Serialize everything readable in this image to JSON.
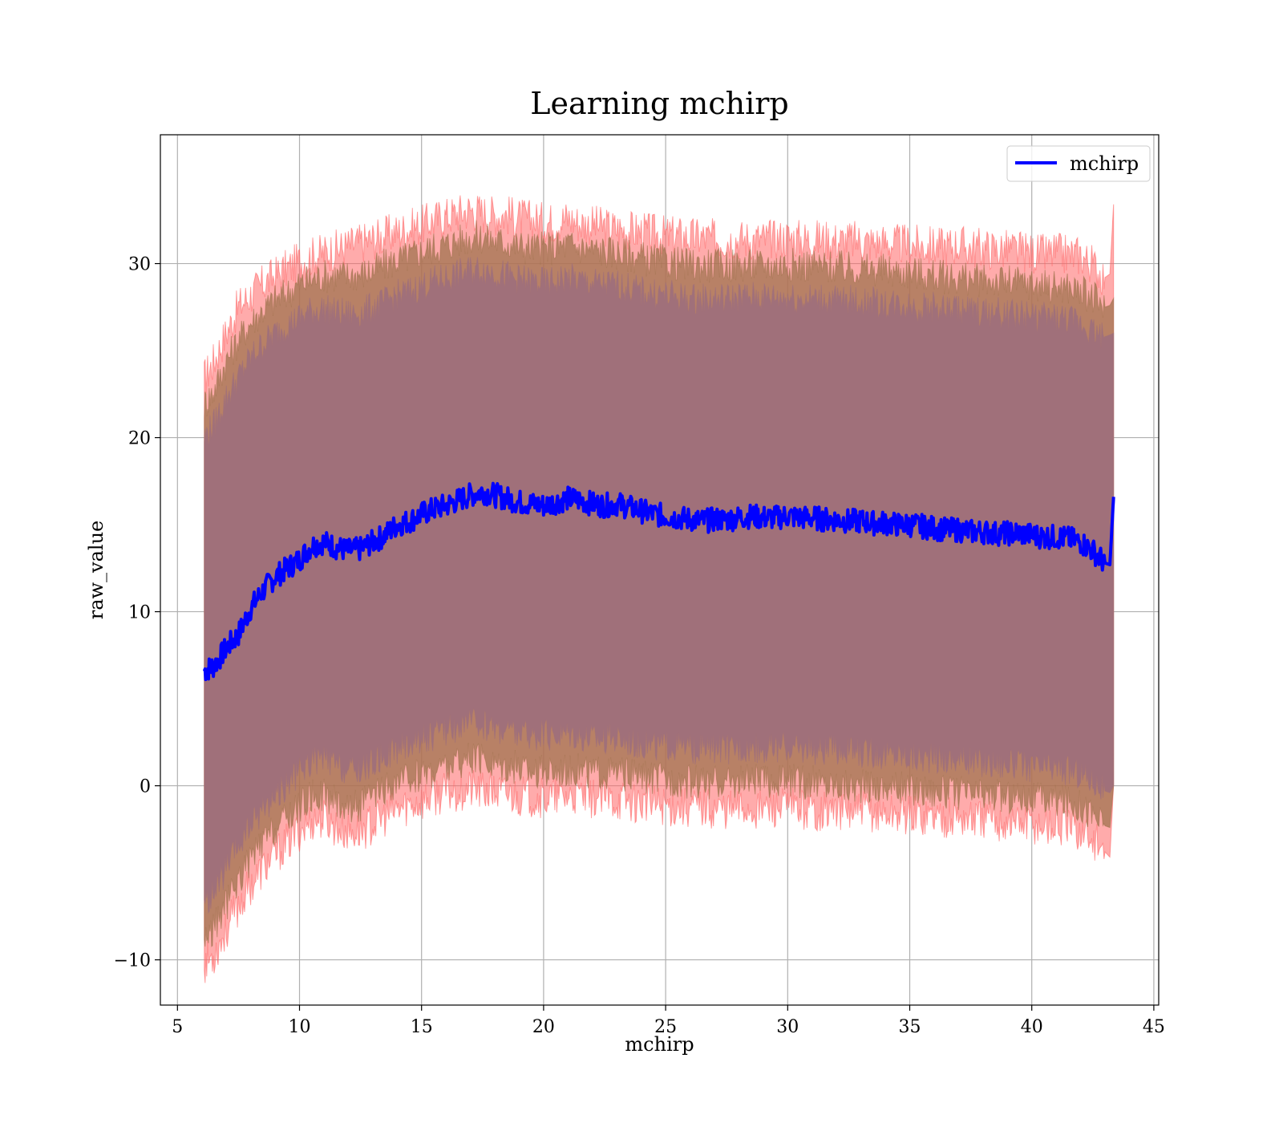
{
  "chart_data": {
    "type": "line",
    "title": "Learning mchirp",
    "xlabel": "mchirp",
    "ylabel": "raw_value",
    "xlim": [
      4.3,
      45.2
    ],
    "ylim": [
      -12.6,
      37.4
    ],
    "xticks": [
      5,
      10,
      15,
      20,
      25,
      30,
      35,
      40,
      45
    ],
    "yticks": [
      -10,
      0,
      10,
      20,
      30
    ],
    "xtick_labels": [
      "5",
      "10",
      "15",
      "20",
      "25",
      "30",
      "35",
      "40",
      "45"
    ],
    "ytick_labels": [
      "−10",
      "0",
      "10",
      "20",
      "30"
    ],
    "grid": true,
    "legend": {
      "position": "top-right"
    },
    "colors": {
      "line": "#0000ff",
      "outer_band": "#ff6666",
      "middle_band": "#a0734f",
      "inner_band": "#a0707a"
    },
    "series": [
      {
        "name": "mchirp",
        "x": [
          6.1,
          6.5,
          7.0,
          7.5,
          8.0,
          8.5,
          9.0,
          9.5,
          10.0,
          10.5,
          11.0,
          11.5,
          12.0,
          12.5,
          13.0,
          13.5,
          14.0,
          14.5,
          15.0,
          15.5,
          16.0,
          16.5,
          17.0,
          17.5,
          18.0,
          18.5,
          19.0,
          19.5,
          20.0,
          20.5,
          21.0,
          21.5,
          22.0,
          22.5,
          23.0,
          23.5,
          24.0,
          24.5,
          25.0,
          25.5,
          26.0,
          26.5,
          27.0,
          27.5,
          28.0,
          28.5,
          29.0,
          29.5,
          30.0,
          30.5,
          31.0,
          31.5,
          32.0,
          32.5,
          33.0,
          33.5,
          34.0,
          34.5,
          35.0,
          35.5,
          36.0,
          36.5,
          37.0,
          37.5,
          38.0,
          38.5,
          39.0,
          39.5,
          40.0,
          40.5,
          41.0,
          41.5,
          42.0,
          42.5,
          43.0,
          43.2,
          43.35
        ],
        "values": [
          6.6,
          6.9,
          7.9,
          8.7,
          10.2,
          11.2,
          12.0,
          12.5,
          13.0,
          13.8,
          14.0,
          13.7,
          13.5,
          13.6,
          14.0,
          14.4,
          15.0,
          15.2,
          15.6,
          15.9,
          16.1,
          16.4,
          16.7,
          16.9,
          16.7,
          16.5,
          16.3,
          16.2,
          16.1,
          16.3,
          16.5,
          16.4,
          16.2,
          16.1,
          16.2,
          16.0,
          15.8,
          15.6,
          15.5,
          15.4,
          15.3,
          15.2,
          15.3,
          15.3,
          15.4,
          15.5,
          15.4,
          15.4,
          15.5,
          15.4,
          15.4,
          15.3,
          15.3,
          15.2,
          15.2,
          15.1,
          15.1,
          15.0,
          15.0,
          14.9,
          14.8,
          14.7,
          14.7,
          14.6,
          14.6,
          14.5,
          14.5,
          14.5,
          14.4,
          14.3,
          14.3,
          14.2,
          14.0,
          13.5,
          12.8,
          12.7,
          16.6
        ]
      }
    ],
    "bands": [
      {
        "role": "outer",
        "upper": [
          23.4,
          24.4,
          26.0,
          27.5,
          28.2,
          28.8,
          29.3,
          29.7,
          30.1,
          30.4,
          30.6,
          30.8,
          31.0,
          31.2,
          31.4,
          31.6,
          31.8,
          32.0,
          32.2,
          32.5,
          32.7,
          32.9,
          33.1,
          32.9,
          32.8,
          32.8,
          32.6,
          32.5,
          32.4,
          32.4,
          32.6,
          32.3,
          32.2,
          32.1,
          32.0,
          31.9,
          31.8,
          31.7,
          31.6,
          31.6,
          31.5,
          31.5,
          31.4,
          31.4,
          31.4,
          31.4,
          31.4,
          31.4,
          31.5,
          31.4,
          31.4,
          31.4,
          31.3,
          31.3,
          31.3,
          31.2,
          31.2,
          31.1,
          31.1,
          31.0,
          31.0,
          31.0,
          31.1,
          30.9,
          30.9,
          30.8,
          30.8,
          30.7,
          30.6,
          30.5,
          30.6,
          30.5,
          30.5,
          29.9,
          29.2,
          29.4,
          33.4
        ],
        "lower": [
          -10.2,
          -9.7,
          -8.3,
          -6.9,
          -5.7,
          -4.8,
          -4.0,
          -3.3,
          -2.6,
          -2.0,
          -1.9,
          -2.4,
          -2.7,
          -2.6,
          -2.2,
          -1.8,
          -1.4,
          -1.1,
          -0.9,
          -0.6,
          -0.4,
          -0.3,
          -0.2,
          -0.3,
          -0.4,
          -0.5,
          -0.6,
          -0.6,
          -0.7,
          -0.7,
          -0.6,
          -0.6,
          -0.7,
          -0.8,
          -0.8,
          -0.9,
          -1.0,
          -1.1,
          -1.1,
          -1.2,
          -1.2,
          -1.2,
          -1.3,
          -1.3,
          -1.3,
          -1.3,
          -1.3,
          -1.3,
          -1.3,
          -1.3,
          -1.4,
          -1.4,
          -1.4,
          -1.5,
          -1.5,
          -1.5,
          -1.6,
          -1.6,
          -1.6,
          -1.7,
          -1.7,
          -1.8,
          -1.8,
          -1.9,
          -1.9,
          -2.0,
          -2.1,
          -2.1,
          -2.2,
          -2.3,
          -2.3,
          -2.4,
          -2.6,
          -3.1,
          -3.8,
          -4.1,
          0.0
        ]
      },
      {
        "role": "middle",
        "upper": [
          21.9,
          22.7,
          24.4,
          25.6,
          26.6,
          27.3,
          27.9,
          28.3,
          28.8,
          29.1,
          29.3,
          29.3,
          29.3,
          29.4,
          29.6,
          29.9,
          30.2,
          30.4,
          30.7,
          30.9,
          31.1,
          31.3,
          31.5,
          31.5,
          31.3,
          31.2,
          31.0,
          30.9,
          30.9,
          30.9,
          31.1,
          30.9,
          30.8,
          30.7,
          30.6,
          30.5,
          30.3,
          30.2,
          30.1,
          30.0,
          29.9,
          29.9,
          29.9,
          29.9,
          29.9,
          29.9,
          29.9,
          29.9,
          30.0,
          29.9,
          29.9,
          29.8,
          29.8,
          29.7,
          29.7,
          29.6,
          29.6,
          29.5,
          29.5,
          29.4,
          29.3,
          29.2,
          29.2,
          29.1,
          29.0,
          29.0,
          28.9,
          28.9,
          28.8,
          28.7,
          28.7,
          28.6,
          28.4,
          28.0,
          27.5,
          27.6,
          28.0
        ],
        "lower": [
          -8.8,
          -8.2,
          -6.8,
          -5.4,
          -4.2,
          -3.3,
          -2.5,
          -1.8,
          -1.2,
          -0.6,
          -0.5,
          -0.9,
          -1.2,
          -1.1,
          -0.7,
          -0.3,
          0.1,
          0.4,
          0.7,
          0.9,
          1.1,
          1.3,
          1.5,
          1.4,
          1.3,
          1.2,
          1.0,
          0.9,
          0.8,
          0.9,
          1.0,
          0.9,
          0.8,
          0.7,
          0.7,
          0.6,
          0.5,
          0.4,
          0.3,
          0.3,
          0.2,
          0.2,
          0.2,
          0.2,
          0.2,
          0.3,
          0.2,
          0.2,
          0.3,
          0.2,
          0.2,
          0.1,
          0.1,
          0.0,
          0.0,
          0.0,
          -0.1,
          -0.1,
          -0.2,
          -0.2,
          -0.3,
          -0.4,
          -0.4,
          -0.5,
          -0.5,
          -0.6,
          -0.6,
          -0.6,
          -0.7,
          -0.8,
          -0.8,
          -0.9,
          -1.1,
          -1.6,
          -2.3,
          -2.4,
          0.0
        ]
      },
      {
        "role": "inner",
        "upper": [
          20.0,
          20.8,
          22.3,
          23.5,
          24.6,
          25.4,
          26.0,
          26.5,
          26.9,
          27.3,
          27.4,
          27.2,
          27.1,
          27.2,
          27.5,
          27.8,
          28.2,
          28.4,
          28.7,
          29.0,
          29.2,
          29.4,
          29.6,
          29.7,
          29.5,
          29.3,
          29.1,
          29.0,
          28.9,
          29.0,
          29.2,
          29.0,
          28.9,
          28.8,
          28.8,
          28.6,
          28.4,
          28.3,
          28.2,
          28.1,
          28.0,
          28.0,
          28.0,
          28.0,
          28.1,
          28.1,
          28.1,
          28.1,
          28.1,
          28.0,
          28.0,
          28.0,
          27.9,
          27.9,
          27.8,
          27.8,
          27.7,
          27.7,
          27.6,
          27.5,
          27.5,
          27.4,
          27.4,
          27.3,
          27.2,
          27.2,
          27.1,
          27.1,
          27.0,
          26.9,
          26.9,
          26.8,
          26.6,
          26.2,
          25.8,
          25.9,
          26.0
        ],
        "lower": [
          -6.8,
          -6.2,
          -4.8,
          -3.5,
          -2.3,
          -1.3,
          -0.6,
          0.1,
          0.8,
          1.4,
          1.5,
          1.1,
          0.8,
          0.9,
          1.3,
          1.7,
          2.1,
          2.4,
          2.7,
          2.9,
          3.2,
          3.4,
          3.6,
          3.5,
          3.3,
          3.2,
          3.0,
          2.9,
          2.9,
          2.9,
          3.1,
          2.9,
          2.8,
          2.7,
          2.7,
          2.6,
          2.4,
          2.3,
          2.3,
          2.2,
          2.1,
          2.1,
          2.1,
          2.1,
          2.2,
          2.2,
          2.2,
          2.2,
          2.2,
          2.1,
          2.1,
          2.1,
          2.0,
          2.0,
          1.9,
          1.9,
          1.8,
          1.8,
          1.7,
          1.6,
          1.6,
          1.5,
          1.5,
          1.4,
          1.3,
          1.3,
          1.2,
          1.2,
          1.1,
          1.0,
          1.0,
          0.9,
          0.7,
          0.3,
          -0.3,
          -0.4,
          0.0
        ]
      }
    ]
  }
}
